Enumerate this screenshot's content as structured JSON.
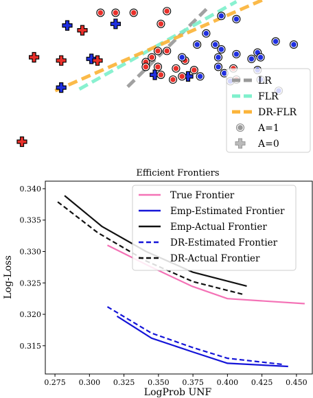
{
  "colors": {
    "red_marker": "#e8302a",
    "blue_marker": "#1f2fe0",
    "lr_line": "#999999",
    "flr_line": "#7ff0cc",
    "drflr_line": "#fbb43a",
    "true_frontier": "#f472b6",
    "emp_estimated": "#1414d8",
    "emp_actual": "#111111",
    "dr_estimated": "#1414d8",
    "dr_actual": "#111111"
  },
  "chart_data": [
    {
      "type": "scatter",
      "title": "",
      "xlabel": "",
      "ylabel": "",
      "axes_visible": false,
      "xlim": [
        0,
        10
      ],
      "ylim": [
        0,
        10
      ],
      "legend": {
        "position": "right",
        "entries": [
          {
            "label": "LR",
            "kind": "line",
            "color": "#999999",
            "style": "dashed"
          },
          {
            "label": "FLR",
            "kind": "line",
            "color": "#7ff0cc",
            "style": "dashed"
          },
          {
            "label": "DR-FLR",
            "kind": "line",
            "color": "#fbb43a",
            "style": "dashed"
          },
          {
            "label": "A=1",
            "kind": "marker",
            "shape": "circle",
            "color": "#888888"
          },
          {
            "label": "A=0",
            "kind": "marker",
            "shape": "plus",
            "color": "#aaaaaa"
          }
        ]
      },
      "lines": [
        {
          "name": "LR",
          "x": [
            4.0,
            6.7
          ],
          "y": [
            4.55,
            9.6
          ],
          "color": "#999999"
        },
        {
          "name": "FLR",
          "x": [
            2.4,
            7.6
          ],
          "y": [
            4.4,
            9.9
          ],
          "color": "#7ff0cc"
        },
        {
          "name": "DR-FLR",
          "x": [
            1.6,
            8.7
          ],
          "y": [
            4.3,
            10.2
          ],
          "color": "#fbb43a"
        }
      ],
      "series": [
        {
          "name": "A=1",
          "marker": "circle",
          "points": [
            {
              "x": 3.1,
              "y": 9.2,
              "color": "red"
            },
            {
              "x": 3.6,
              "y": 9.2,
              "color": "red"
            },
            {
              "x": 4.2,
              "y": 9.2,
              "color": "red"
            },
            {
              "x": 5.3,
              "y": 9.3,
              "color": "red"
            },
            {
              "x": 5.1,
              "y": 8.5,
              "color": "red"
            },
            {
              "x": 5.0,
              "y": 6.8,
              "color": "red"
            },
            {
              "x": 5.3,
              "y": 6.8,
              "color": "red"
            },
            {
              "x": 4.8,
              "y": 6.4,
              "color": "red"
            },
            {
              "x": 4.6,
              "y": 6.1,
              "color": "red"
            },
            {
              "x": 4.6,
              "y": 5.8,
              "color": "red"
            },
            {
              "x": 5.0,
              "y": 5.8,
              "color": "red"
            },
            {
              "x": 5.6,
              "y": 5.7,
              "color": "red"
            },
            {
              "x": 6.2,
              "y": 5.6,
              "color": "red"
            },
            {
              "x": 5.9,
              "y": 6.2,
              "color": "red"
            },
            {
              "x": 7.5,
              "y": 5.7,
              "color": "red"
            },
            {
              "x": 5.1,
              "y": 5.3,
              "color": "red"
            },
            {
              "x": 5.5,
              "y": 5.0,
              "color": "red"
            },
            {
              "x": 5.8,
              "y": 5.2,
              "color": "red"
            },
            {
              "x": 7.6,
              "y": 5.0,
              "color": "red"
            },
            {
              "x": 7.1,
              "y": 9.0,
              "color": "blue"
            },
            {
              "x": 7.6,
              "y": 8.8,
              "color": "blue"
            },
            {
              "x": 6.6,
              "y": 7.9,
              "color": "blue"
            },
            {
              "x": 6.3,
              "y": 7.2,
              "color": "blue"
            },
            {
              "x": 6.9,
              "y": 7.2,
              "color": "blue"
            },
            {
              "x": 7.1,
              "y": 6.9,
              "color": "blue"
            },
            {
              "x": 7.6,
              "y": 6.6,
              "color": "blue"
            },
            {
              "x": 8.3,
              "y": 6.7,
              "color": "blue"
            },
            {
              "x": 8.9,
              "y": 7.4,
              "color": "blue"
            },
            {
              "x": 9.5,
              "y": 7.2,
              "color": "blue"
            },
            {
              "x": 8.1,
              "y": 6.3,
              "color": "blue"
            },
            {
              "x": 8.4,
              "y": 6.4,
              "color": "blue"
            },
            {
              "x": 7.0,
              "y": 6.4,
              "color": "blue"
            },
            {
              "x": 5.8,
              "y": 6.4,
              "color": "blue"
            },
            {
              "x": 6.4,
              "y": 5.2,
              "color": "blue"
            },
            {
              "x": 7.2,
              "y": 5.4,
              "color": "blue"
            },
            {
              "x": 7.0,
              "y": 5.8,
              "color": "blue"
            },
            {
              "x": 7.4,
              "y": 4.9,
              "color": "blue"
            },
            {
              "x": 8.4,
              "y": 5.0,
              "color": "blue"
            },
            {
              "x": 8.3,
              "y": 5.6,
              "color": "blue"
            },
            {
              "x": 9.0,
              "y": 4.3,
              "color": "blue"
            }
          ]
        },
        {
          "name": "A=0",
          "marker": "plus",
          "points": [
            {
              "x": 2.0,
              "y": 8.4,
              "color": "blue"
            },
            {
              "x": 2.5,
              "y": 8.1,
              "color": "red"
            },
            {
              "x": 0.9,
              "y": 6.4,
              "color": "red"
            },
            {
              "x": 1.8,
              "y": 6.2,
              "color": "red"
            },
            {
              "x": 2.8,
              "y": 6.3,
              "color": "blue"
            },
            {
              "x": 3.0,
              "y": 6.2,
              "color": "red"
            },
            {
              "x": 3.6,
              "y": 8.5,
              "color": "blue"
            },
            {
              "x": 4.9,
              "y": 5.3,
              "color": "blue"
            },
            {
              "x": 6.0,
              "y": 5.2,
              "color": "blue"
            },
            {
              "x": 1.8,
              "y": 4.5,
              "color": "blue"
            },
            {
              "x": 0.5,
              "y": 1.1,
              "color": "red"
            }
          ]
        }
      ]
    },
    {
      "type": "line",
      "title": "Efficient Frontiers",
      "xlabel": "LogProb UNF",
      "ylabel": "Log-Loss",
      "xlim": [
        0.268,
        0.462
      ],
      "ylim": [
        0.3105,
        0.3412
      ],
      "xticks": [
        "0.275",
        "0.300",
        "0.325",
        "0.350",
        "0.375",
        "0.400",
        "0.425",
        "0.450"
      ],
      "yticks": [
        "0.315",
        "0.320",
        "0.325",
        "0.330",
        "0.335",
        "0.340"
      ],
      "legend": {
        "position": "upper right",
        "entries": [
          "True Frontier",
          "Emp-Estimated Frontier",
          "Emp-Actual Frontier",
          "DR-Estimated Frontier",
          "DR-Actual Frontier"
        ]
      },
      "series": [
        {
          "name": "True Frontier",
          "style": "solid",
          "color": "#f472b6",
          "x": [
            0.313,
            0.345,
            0.374,
            0.4,
            0.456
          ],
          "y": [
            0.331,
            0.3275,
            0.3245,
            0.3225,
            0.3217
          ]
        },
        {
          "name": "Emp-Estimated Frontier",
          "style": "solid",
          "color": "#1414d8",
          "x": [
            0.32,
            0.345,
            0.375,
            0.4,
            0.444
          ],
          "y": [
            0.3197,
            0.3162,
            0.314,
            0.3122,
            0.3117
          ]
        },
        {
          "name": "Emp-Actual Frontier",
          "style": "solid",
          "color": "#111111",
          "x": [
            0.282,
            0.309,
            0.341,
            0.375,
            0.414
          ],
          "y": [
            0.3389,
            0.334,
            0.33,
            0.3267,
            0.3245
          ]
        },
        {
          "name": "DR-Estimated Frontier",
          "style": "dashed",
          "color": "#1414d8",
          "x": [
            0.313,
            0.345,
            0.375,
            0.4,
            0.441
          ],
          "y": [
            0.3212,
            0.317,
            0.3147,
            0.313,
            0.312
          ]
        },
        {
          "name": "DR-Actual Frontier",
          "style": "dashed",
          "color": "#111111",
          "x": [
            0.277,
            0.306,
            0.341,
            0.375,
            0.411
          ],
          "y": [
            0.3379,
            0.333,
            0.3285,
            0.3252,
            0.3232
          ]
        }
      ]
    }
  ]
}
